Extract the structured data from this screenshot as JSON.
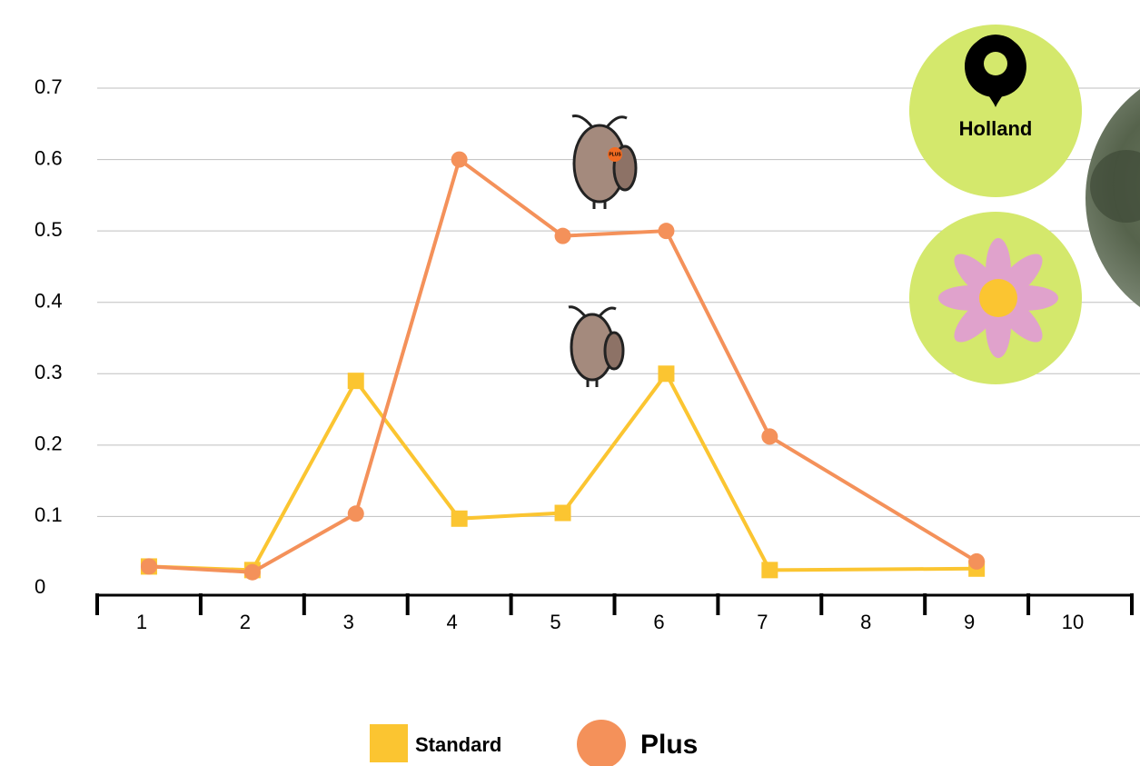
{
  "chart_data": {
    "type": "line",
    "x": [
      1,
      2,
      3,
      4,
      5,
      6,
      7,
      9
    ],
    "series": [
      {
        "name": "Standard",
        "color": "#fbc531",
        "marker": "square",
        "values": [
          0.03,
          0.025,
          0.29,
          0.097,
          0.105,
          0.3,
          0.025,
          0.027
        ]
      },
      {
        "name": "Plus",
        "color": "#f4915a",
        "marker": "circle",
        "values": [
          0.03,
          0.022,
          0.104,
          0.6,
          0.493,
          0.5,
          0.212,
          0.037
        ]
      }
    ],
    "xlim": [
      0.5,
      10.5
    ],
    "xticks": [
      1,
      2,
      3,
      4,
      5,
      6,
      7,
      8,
      9,
      10
    ],
    "ylim": [
      0,
      0.7
    ],
    "yticks": [
      0,
      0.1,
      0.2,
      0.3,
      0.4,
      0.5,
      0.6,
      0.7
    ],
    "grid": true,
    "legend": "bottom",
    "annotations": [
      "Holland",
      "PLUS"
    ]
  }
}
